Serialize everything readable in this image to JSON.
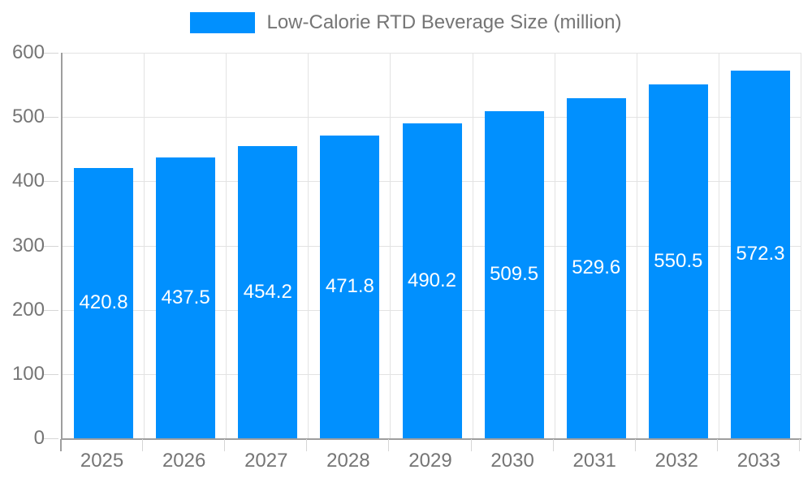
{
  "legend": {
    "label": "Low-Calorie RTD Beverage Size (million)"
  },
  "chart_data": {
    "type": "bar",
    "title": "Low-Calorie RTD Beverage Size (million)",
    "categories": [
      "2025",
      "2026",
      "2027",
      "2028",
      "2029",
      "2030",
      "2031",
      "2032",
      "2033"
    ],
    "values": [
      420.8,
      437.5,
      454.2,
      471.8,
      490.2,
      509.5,
      529.6,
      550.5,
      572.3
    ],
    "xlabel": "",
    "ylabel": "",
    "ylim": [
      0,
      600
    ],
    "yticks": [
      0,
      100,
      200,
      300,
      400,
      500,
      600
    ],
    "grid": true,
    "legend_position": "top-center",
    "value_labels": "inside-middle"
  },
  "colors": {
    "bar": "#0190fe",
    "grid": "#e3e3e3",
    "axis": "#9e9e9e",
    "tick": "#d6d6d6",
    "text": "#757575",
    "value_label": "#ffffff",
    "background": "#ffffff"
  }
}
